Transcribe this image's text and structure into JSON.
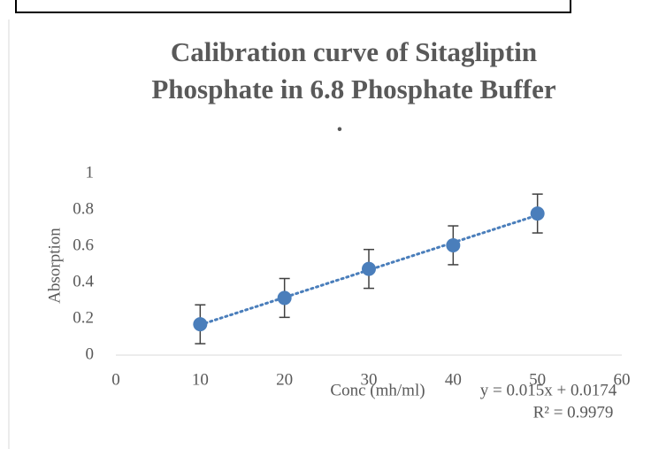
{
  "chart_data": {
    "type": "scatter",
    "title": [
      "Calibration curve of Sitagliptin",
      "Phosphate  in 6.8 Phosphate Buffer"
    ],
    "subtitle": "•",
    "x_label": "Conc (mh/ml)",
    "y_label": "Absorption",
    "annotations": [
      "y = 0.015x + 0.0174",
      "R² = 0.9979"
    ],
    "x": [
      10,
      20,
      30,
      40,
      50
    ],
    "values": [
      0.17,
      0.315,
      0.475,
      0.605,
      0.78
    ],
    "errors": [
      0.107,
      0.107,
      0.107,
      0.107,
      0.107
    ],
    "color": "#4a7ebb",
    "xlim": [
      0,
      60
    ],
    "xticks": [
      0,
      10,
      20,
      30,
      40,
      50,
      60
    ],
    "ylim": [
      0,
      1
    ],
    "yticks": [
      0,
      0.2,
      0.4,
      0.6,
      0.8,
      1
    ],
    "trendline": "linear",
    "grid": false
  }
}
